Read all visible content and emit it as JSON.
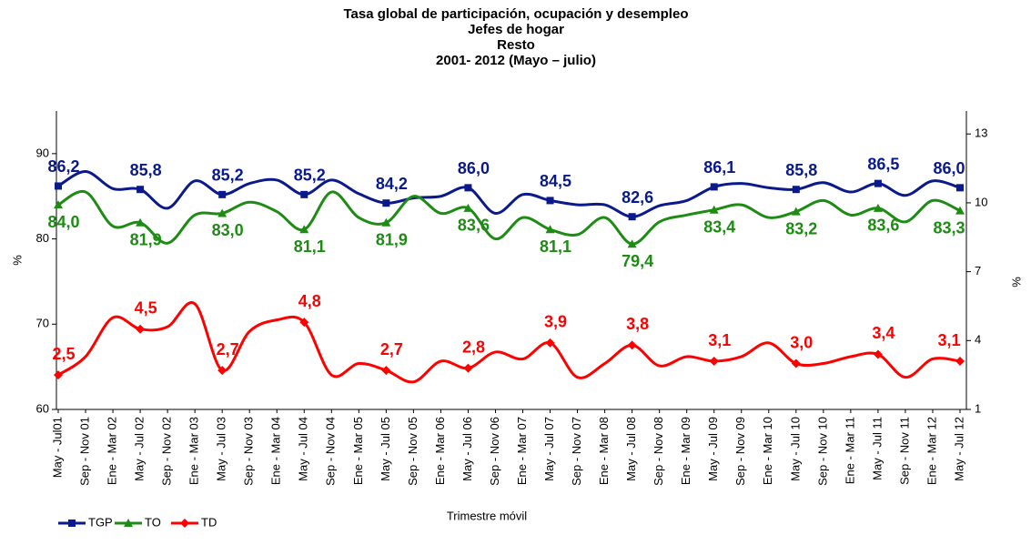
{
  "chart_data": {
    "type": "line",
    "title": [
      "Tasa global de participación, ocupación y desempleo",
      "Jefes de hogar",
      "Resto",
      "2001- 2012 (Mayo – julio)"
    ],
    "x_label": "Trimestre móvil",
    "y_label": "%",
    "y2_label": "%",
    "categories": [
      "May - Jul01",
      "Sep - Nov 01",
      "Ene - Mar 02",
      "May - Jul 02",
      "Sep - Nov 02",
      "Ene - Mar 03",
      "May - Jul 03",
      "Sep - Nov 03",
      "Ene - Mar 04",
      "May - Jul 04",
      "Sep - Nov 04",
      "Ene - Mar 05",
      "May - Jul 05",
      "Sep - Nov 05",
      "Ene - Mar 06",
      "May - Jul 06",
      "Sep - Nov 06",
      "Ene - Mar 07",
      "May - Jul 07",
      "Sep - Nov 07",
      "Ene - Mar 08",
      "May - Jul 08",
      "Sep - Nov 08",
      "Ene - Mar 09",
      "May - Jul 09",
      "Sep - Nov 09",
      "Ene - Mar 10",
      "May - Jul 10",
      "Sep - Nov 10",
      "Ene - Mar 11",
      "May - Jul 11",
      "Sep - Nov 11",
      "Ene - Mar 12",
      "May - Jul 12"
    ],
    "ylim": [
      60,
      95
    ],
    "yticks": [
      60,
      70,
      80,
      90
    ],
    "y2lim": [
      1,
      14
    ],
    "y2ticks": [
      1,
      4,
      7,
      10,
      13
    ],
    "legend": "bottom-left",
    "series": [
      {
        "name": "TGP",
        "color": "#0a1a8c",
        "marker": "square",
        "values": [
          86.2,
          87.9,
          85.9,
          85.8,
          83.6,
          86.8,
          85.2,
          86.5,
          86.9,
          85.2,
          86.9,
          85.3,
          84.2,
          84.8,
          85.0,
          86.0,
          83.0,
          85.2,
          84.5,
          84.0,
          84.0,
          82.6,
          83.9,
          84.5,
          86.1,
          86.5,
          86.0,
          85.8,
          86.6,
          85.5,
          86.5,
          85.1,
          86.8,
          86.0
        ],
        "value_labels": [
          "86,2",
          null,
          null,
          "85,8",
          null,
          null,
          "85,2",
          null,
          null,
          "85,2",
          null,
          null,
          "84,2",
          null,
          null,
          "86,0",
          null,
          null,
          "84,5",
          null,
          null,
          "82,6",
          null,
          null,
          "86,1",
          null,
          null,
          "85,8",
          null,
          null,
          "86,5",
          null,
          null,
          "86,0"
        ]
      },
      {
        "name": "TO",
        "color": "#1e8c14",
        "marker": "triangle",
        "values": [
          84.0,
          85.5,
          81.5,
          81.9,
          79.5,
          82.8,
          83.0,
          84.3,
          83.2,
          81.1,
          85.5,
          82.5,
          81.9,
          85.0,
          83.0,
          83.6,
          80.0,
          82.5,
          81.1,
          80.5,
          82.5,
          79.4,
          82.0,
          82.8,
          83.4,
          84.0,
          82.5,
          83.2,
          84.5,
          82.8,
          83.6,
          82.0,
          84.5,
          83.3
        ],
        "value_labels": [
          "84,0",
          null,
          null,
          "81,9",
          null,
          null,
          "83,0",
          null,
          null,
          "81,1",
          null,
          null,
          "81,9",
          null,
          null,
          "83,6",
          null,
          null,
          "81,1",
          null,
          null,
          "79,4",
          null,
          null,
          "83,4",
          null,
          null,
          "83,2",
          null,
          null,
          "83,6",
          null,
          null,
          "83,3"
        ]
      },
      {
        "name": "TD",
        "color": "#ff0000",
        "marker": "diamond",
        "axis": "y2",
        "values": [
          2.5,
          3.3,
          5.0,
          4.5,
          4.6,
          5.6,
          2.7,
          4.4,
          4.9,
          4.8,
          2.5,
          3.0,
          2.7,
          2.2,
          3.1,
          2.8,
          3.5,
          3.2,
          3.9,
          2.4,
          3.0,
          3.8,
          2.9,
          3.3,
          3.1,
          3.3,
          3.9,
          3.0,
          3.0,
          3.3,
          3.4,
          2.4,
          3.2,
          3.1
        ],
        "value_labels": [
          "2,5",
          null,
          null,
          "4,5",
          null,
          null,
          "2,7",
          null,
          null,
          "4,8",
          null,
          null,
          "2,7",
          null,
          null,
          "2,8",
          null,
          null,
          "3,9",
          null,
          null,
          "3,8",
          null,
          null,
          "3,1",
          null,
          null,
          "3,0",
          null,
          null,
          "3,4",
          null,
          null,
          "3,1"
        ]
      }
    ]
  }
}
